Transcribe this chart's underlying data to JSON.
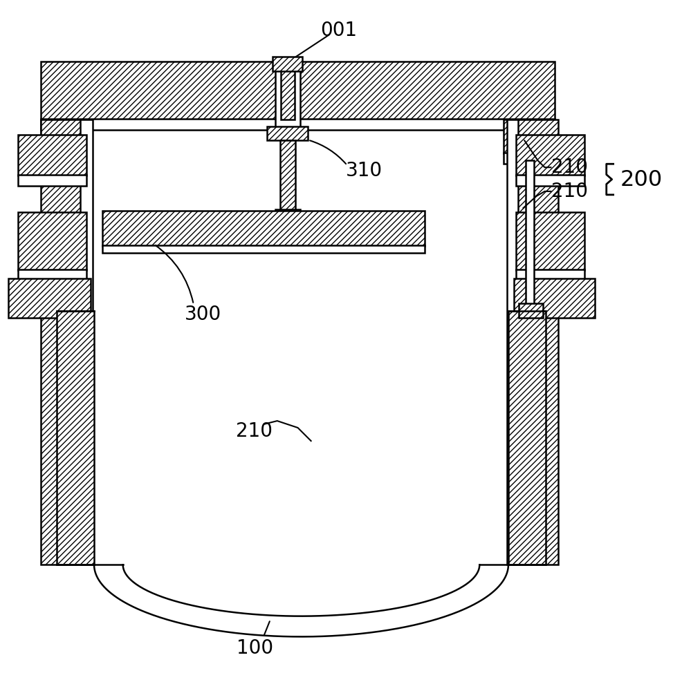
{
  "bg_color": "#ffffff",
  "line_color": "#000000",
  "lw": 1.8,
  "fontsize": 20,
  "hatch": "////"
}
